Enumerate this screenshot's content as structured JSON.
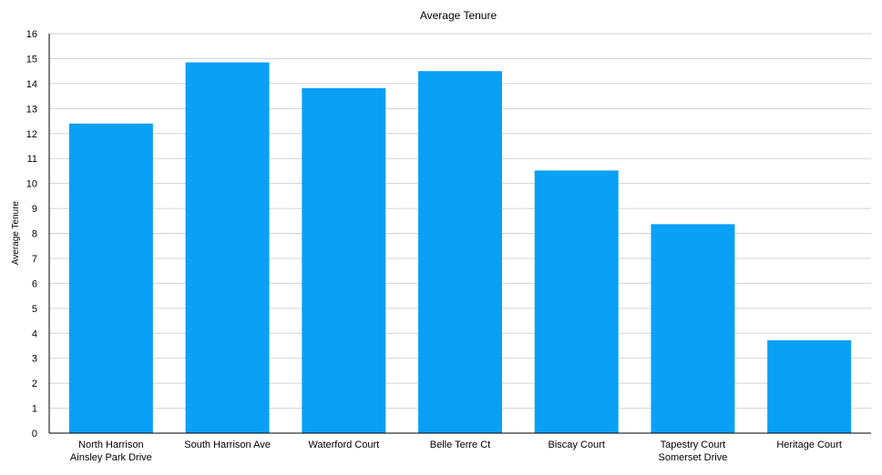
{
  "chart_data": {
    "type": "bar",
    "title": "Average Tenure",
    "xlabel": "",
    "ylabel": "Average Tenure",
    "ylim": [
      0,
      16
    ],
    "yticks": [
      0,
      1,
      2,
      3,
      4,
      5,
      6,
      7,
      8,
      9,
      10,
      11,
      12,
      13,
      14,
      15,
      16
    ],
    "grid": true,
    "legend": "none",
    "categories": [
      [
        "North Harrison",
        "Ainsley Park Drive"
      ],
      [
        "South Harrison Ave"
      ],
      [
        "Waterford Court"
      ],
      [
        "Belle Terre Ct"
      ],
      [
        "Biscay Court"
      ],
      [
        "Tapestry Court",
        "Somerset Drive"
      ],
      [
        "Heritage Court"
      ]
    ],
    "values": [
      12.4,
      14.85,
      13.82,
      14.5,
      10.52,
      8.37,
      3.72
    ],
    "colors": {
      "bar": "#0aa0f5",
      "grid": "#d3d3d3",
      "axis": "#000000"
    }
  }
}
